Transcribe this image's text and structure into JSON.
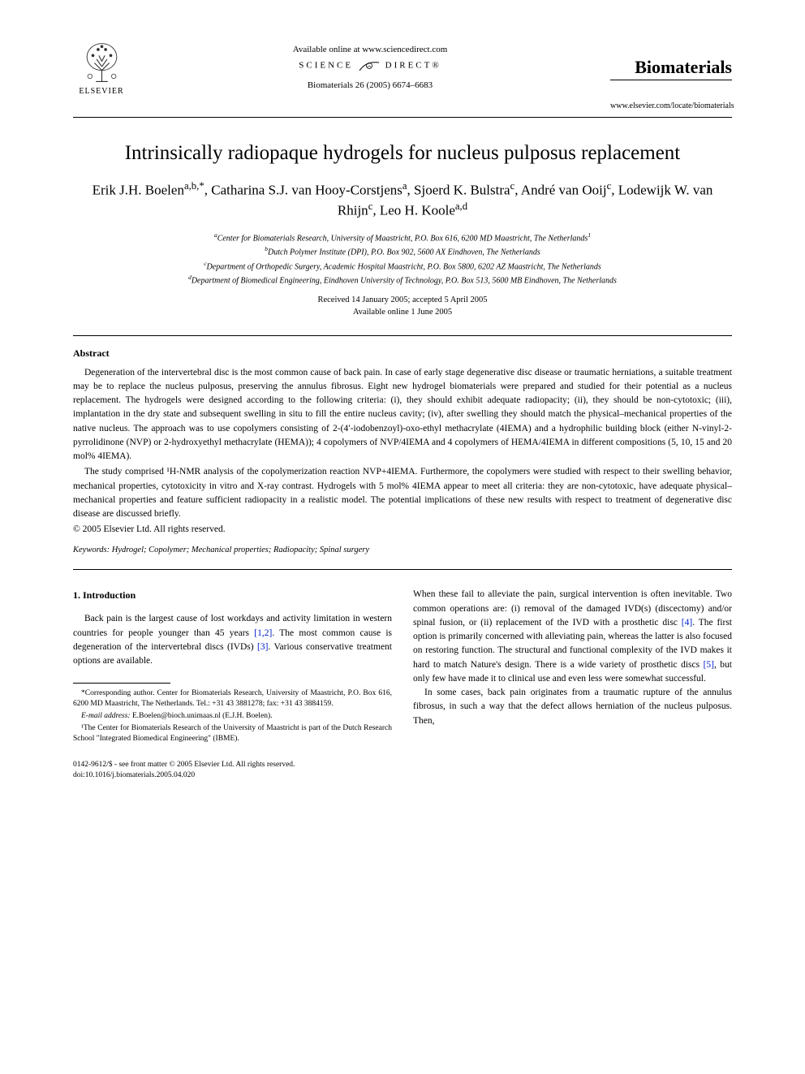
{
  "header": {
    "available_text": "Available online at www.sciencedirect.com",
    "science_direct": "SCIENCE",
    "science_direct2": "DIRECT®",
    "citation": "Biomaterials 26 (2005) 6674–6683",
    "elsevier_label": "ELSEVIER",
    "journal_name": "Biomaterials",
    "journal_url": "www.elsevier.com/locate/biomaterials"
  },
  "title": "Intrinsically radiopaque hydrogels for nucleus pulposus replacement",
  "authors_html": "Erik J.H. Boelen<sup>a,b,*</sup>, Catharina S.J. van Hooy-Corstjens<sup>a</sup>, Sjoerd K. Bulstra<sup>c</sup>, André van Ooij<sup>c</sup>, Lodewijk W. van Rhijn<sup>c</sup>, Leo H. Koole<sup>a,d</sup>",
  "affiliations": {
    "a": "Center for Biomaterials Research, University of Maastricht, P.O. Box 616, 6200 MD Maastricht, The Netherlands",
    "a_suffix": "1",
    "b": "Dutch Polymer Institute (DPI), P.O. Box 902, 5600 AX Eindhoven, The Netherlands",
    "c": "Department of Orthopedic Surgery, Academic Hospital Maastricht, P.O. Box 5800, 6202 AZ Maastricht, The Netherlands",
    "d": "Department of Biomedical Engineering, Eindhoven University of Technology, P.O. Box 513, 5600 MB Eindhoven, The Netherlands"
  },
  "dates": {
    "received": "Received 14 January 2005; accepted 5 April 2005",
    "online": "Available online 1 June 2005"
  },
  "abstract": {
    "heading": "Abstract",
    "p1": "Degeneration of the intervertebral disc is the most common cause of back pain. In case of early stage degenerative disc disease or traumatic herniations, a suitable treatment may be to replace the nucleus pulposus, preserving the annulus fibrosus. Eight new hydrogel biomaterials were prepared and studied for their potential as a nucleus replacement. The hydrogels were designed according to the following criteria: (i), they should exhibit adequate radiopacity; (ii), they should be non-cytotoxic; (iii), implantation in the dry state and subsequent swelling in situ to fill the entire nucleus cavity; (iv), after swelling they should match the physical–mechanical properties of the native nucleus. The approach was to use copolymers consisting of 2-(4′-iodobenzoyl)-oxo-ethyl methacrylate (4IEMA) and a hydrophilic building block (either N-vinyl-2-pyrrolidinone (NVP) or 2-hydroxyethyl methacrylate (HEMA)); 4 copolymers of NVP/4IEMA and 4 copolymers of HEMA/4IEMA in different compositions (5, 10, 15 and 20 mol% 4IEMA).",
    "p2": "The study comprised ¹H-NMR analysis of the copolymerization reaction NVP+4IEMA. Furthermore, the copolymers were studied with respect to their swelling behavior, mechanical properties, cytotoxicity in vitro and X-ray contrast. Hydrogels with 5 mol% 4IEMA appear to meet all criteria: they are non-cytotoxic, have adequate physical–mechanical properties and feature sufficient radiopacity in a realistic model. The potential implications of these new results with respect to treatment of degenerative disc disease are discussed briefly.",
    "copyright": "© 2005 Elsevier Ltd. All rights reserved."
  },
  "keywords": {
    "label": "Keywords:",
    "text": "Hydrogel; Copolymer; Mechanical properties; Radiopacity; Spinal surgery"
  },
  "intro": {
    "heading": "1. Introduction",
    "left_p1_a": "Back pain is the largest cause of lost workdays and activity limitation in western countries for people younger than 45 years ",
    "ref12": "[1,2]",
    "left_p1_b": ". The most common cause is degeneration of the intervertebral discs (IVDs) ",
    "ref3": "[3]",
    "left_p1_c": ". Various conservative treatment options are available.",
    "right_p1_a": "When these fail to alleviate the pain, surgical intervention is often inevitable. Two common operations are: (i) removal of the damaged IVD(s) (discectomy) and/or spinal fusion, or (ii) replacement of the IVD with a prosthetic disc ",
    "ref4": "[4]",
    "right_p1_b": ". The first option is primarily concerned with alleviating pain, whereas the latter is also focused on restoring function. The structural and functional complexity of the IVD makes it hard to match Nature's design. There is a wide variety of prosthetic discs ",
    "ref5": "[5]",
    "right_p1_c": ", but only few have made it to clinical use and even less were somewhat successful.",
    "right_p2": "In some cases, back pain originates from a traumatic rupture of the annulus fibrosus, in such a way that the defect allows herniation of the nucleus pulposus. Then,"
  },
  "footnotes": {
    "corresp": "*Corresponding author. Center for Biomaterials Research, University of Maastricht, P.O. Box 616, 6200 MD Maastricht, The Netherlands. Tel.: +31 43 3881278; fax: +31 43 3884159.",
    "email_label": "E-mail address:",
    "email": "E.Boelen@bioch.unimaas.nl (E.J.H. Boelen).",
    "note1": "¹The Center for Biomaterials Research of the University of Maastricht is part of the Dutch Research School \"Integrated Biomedical Engineering\" (IBME)."
  },
  "bottom": {
    "front_matter": "0142-9612/$ - see front matter © 2005 Elsevier Ltd. All rights reserved.",
    "doi": "doi:10.1016/j.biomaterials.2005.04.020"
  },
  "colors": {
    "text": "#000000",
    "background": "#ffffff",
    "link": "#0020cc",
    "logo_orange": "#e67817"
  }
}
